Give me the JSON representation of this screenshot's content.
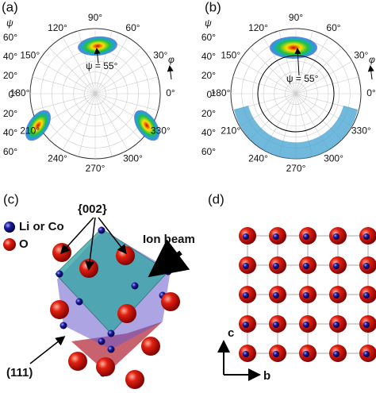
{
  "panels": [
    {
      "label": "(a)",
      "psi_label": "ψ",
      "phi_label": "φ",
      "psi_ticks": [
        "60°",
        "40°",
        "20°",
        "0°",
        "20°",
        "40°",
        "60°"
      ],
      "angle_labels": [
        "0°",
        "30°",
        "60°",
        "90°",
        "120°",
        "150°",
        "180°",
        "210°",
        "240°",
        "270°",
        "300°",
        "330°"
      ],
      "annotation": "ψ = 55°"
    },
    {
      "label": "(b)",
      "psi_label": "ψ",
      "phi_label": "φ",
      "psi_ticks": [
        "60°",
        "40°",
        "20°",
        "0°",
        "20°",
        "40°",
        "60°"
      ],
      "angle_labels": [
        "0°",
        "30°",
        "60°",
        "90°",
        "120°",
        "150°",
        "180°",
        "210°",
        "240°",
        "270°",
        "300°",
        "330°"
      ],
      "annotation": "ψ = 55°"
    }
  ],
  "panel_c": {
    "label": "(c)",
    "legend": [
      "Li or Co",
      "O"
    ],
    "plane_002": "{002}",
    "ion_beam": "Ion beam",
    "plane_111": "(111)"
  },
  "panel_d": {
    "label": "(d)",
    "axis_c": "c",
    "axis_b": "b"
  }
}
